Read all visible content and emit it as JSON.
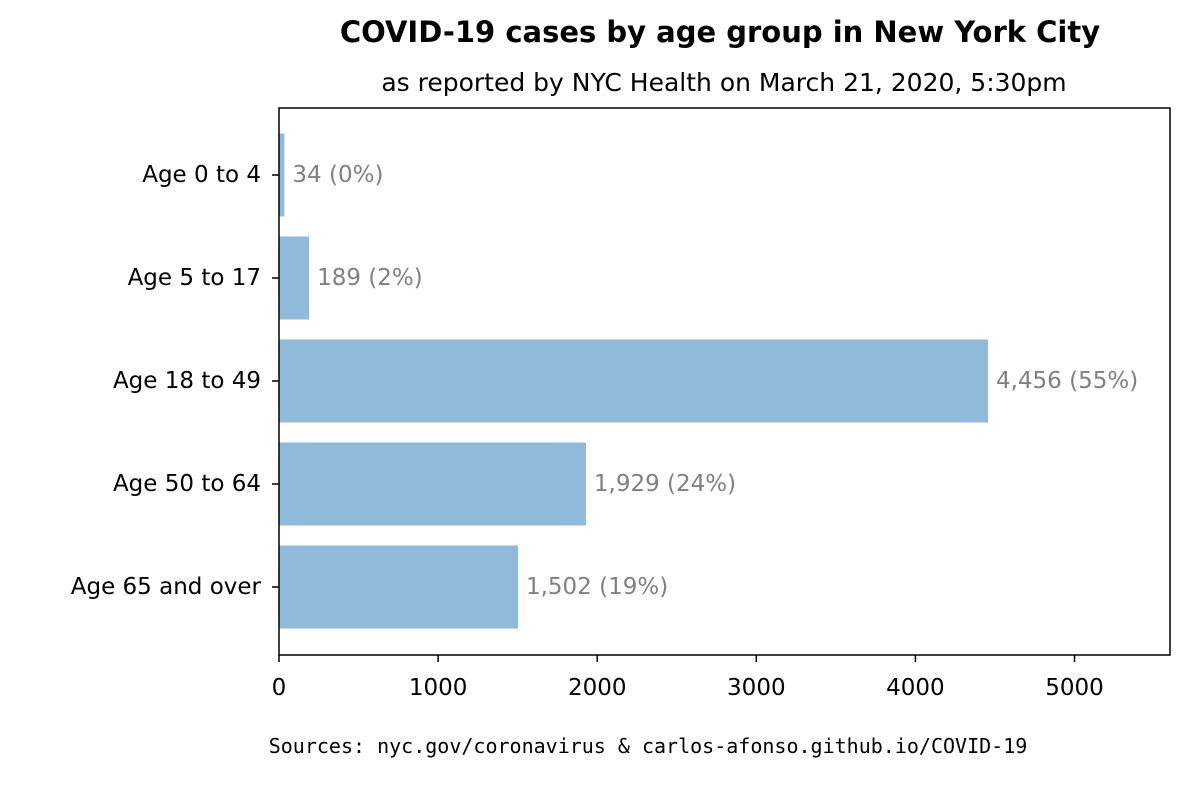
{
  "chart_data": {
    "type": "bar",
    "orientation": "horizontal",
    "title": "COVID-19 cases by age group in New York City",
    "subtitle": "as reported by NYC Health on March 21, 2020, 5:30pm",
    "categories": [
      "Age 0 to 4",
      "Age 5 to 17",
      "Age 18 to 49",
      "Age 50 to 64",
      "Age 65 and over"
    ],
    "values": [
      34,
      189,
      4456,
      1929,
      1502
    ],
    "data_labels": [
      "34 (0%)",
      "189 (2%)",
      "4,456 (55%)",
      "1,929 (24%)",
      "1,502 (19%)"
    ],
    "xlim": [
      0,
      5600
    ],
    "xticks": [
      0,
      1000,
      2000,
      3000,
      4000,
      5000
    ],
    "xtick_labels": [
      "0",
      "1000",
      "2000",
      "3000",
      "4000",
      "5000"
    ],
    "xlabel": "",
    "ylabel": "",
    "grid": false,
    "bar_color": "#8fbad9",
    "label_color": "#808080"
  },
  "footer": {
    "sources": "Sources: nyc.gov/coronavirus & carlos-afonso.github.io/COVID-19"
  }
}
